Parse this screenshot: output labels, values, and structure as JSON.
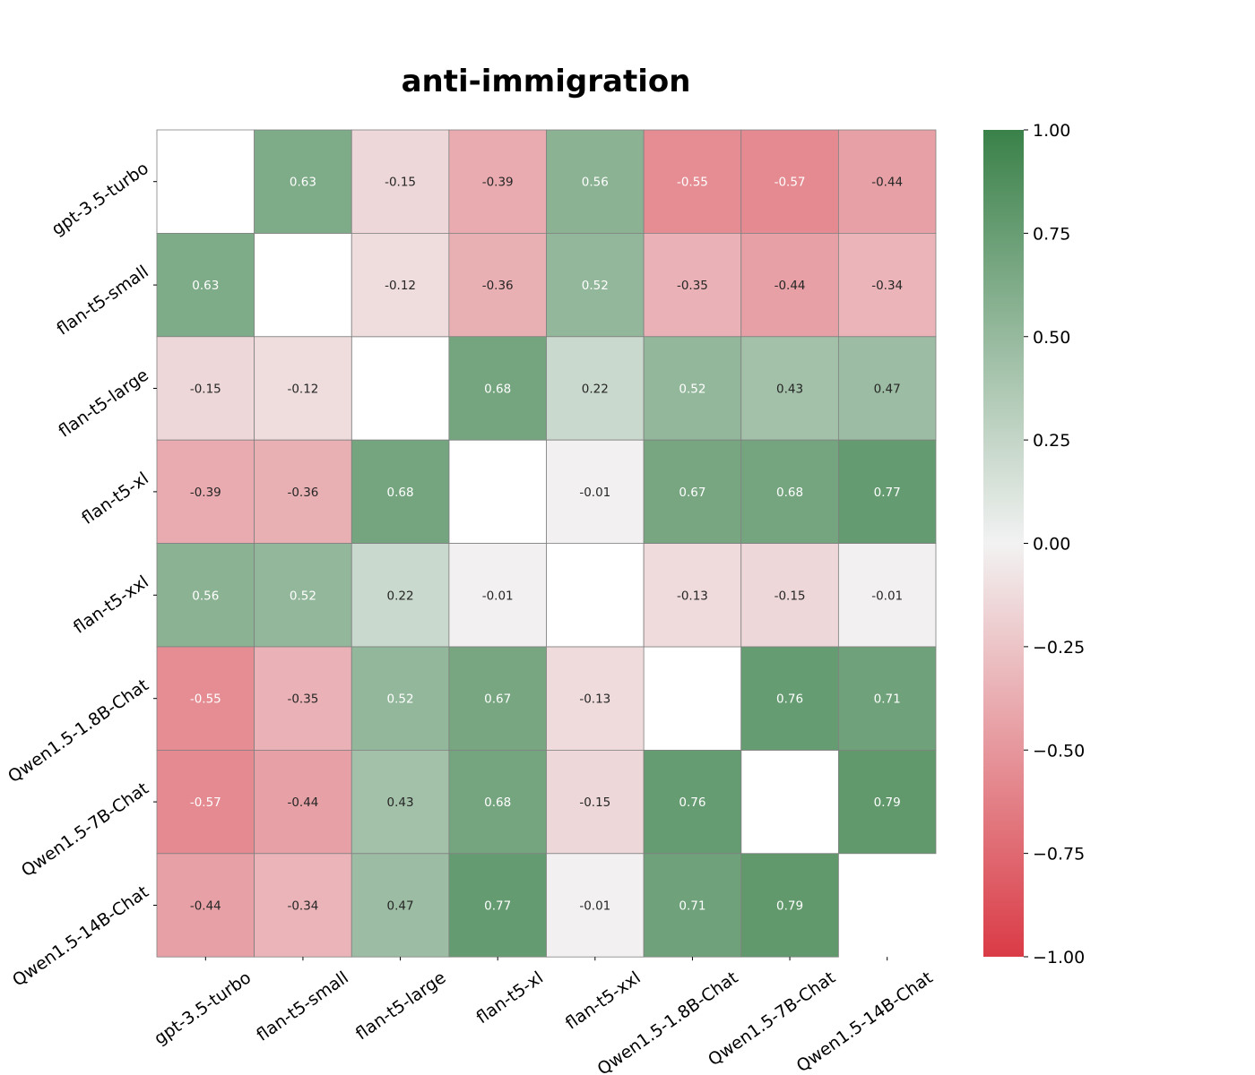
{
  "chart_data": {
    "type": "heatmap",
    "title": "anti-immigration",
    "x_categories": [
      "gpt-3.5-turbo",
      "flan-t5-small",
      "flan-t5-large",
      "flan-t5-xl",
      "flan-t5-xxl",
      "Qwen1.5-1.8B-Chat",
      "Qwen1.5-7B-Chat",
      "Qwen1.5-14B-Chat"
    ],
    "y_categories": [
      "gpt-3.5-turbo",
      "flan-t5-small",
      "flan-t5-large",
      "flan-t5-xl",
      "flan-t5-xxl",
      "Qwen1.5-1.8B-Chat",
      "Qwen1.5-7B-Chat",
      "Qwen1.5-14B-Chat"
    ],
    "values": [
      [
        null,
        0.63,
        -0.15,
        -0.39,
        0.56,
        -0.55,
        -0.57,
        -0.44
      ],
      [
        0.63,
        null,
        -0.12,
        -0.36,
        0.52,
        -0.35,
        -0.44,
        -0.34
      ],
      [
        -0.15,
        -0.12,
        null,
        0.68,
        0.22,
        0.52,
        0.43,
        0.47
      ],
      [
        -0.39,
        -0.36,
        0.68,
        null,
        -0.01,
        0.67,
        0.68,
        0.77
      ],
      [
        0.56,
        0.52,
        0.22,
        -0.01,
        null,
        -0.13,
        -0.15,
        -0.01
      ],
      [
        -0.55,
        -0.35,
        0.52,
        0.67,
        -0.13,
        null,
        0.76,
        0.71
      ],
      [
        -0.57,
        -0.44,
        0.43,
        0.68,
        -0.15,
        0.76,
        null,
        0.79
      ],
      [
        -0.44,
        -0.34,
        0.47,
        0.77,
        -0.01,
        0.71,
        0.79,
        null
      ]
    ],
    "cell_labels": [
      [
        "",
        "0.63",
        "-0.15",
        "-0.39",
        "0.56",
        "-0.55",
        "-0.57",
        "-0.44"
      ],
      [
        "0.63",
        "",
        "-0.12",
        "-0.36",
        "0.52",
        "-0.35",
        "-0.44",
        "-0.34"
      ],
      [
        "-0.15",
        "-0.12",
        "",
        "0.68",
        "0.22",
        "0.52",
        "0.43",
        "0.47"
      ],
      [
        "-0.39",
        "-0.36",
        "0.68",
        "",
        "-0.01",
        "0.67",
        "0.68",
        "0.77"
      ],
      [
        "0.56",
        "0.52",
        "0.22",
        "-0.01",
        "",
        "-0.13",
        "-0.15",
        "-0.01"
      ],
      [
        "-0.55",
        "-0.35",
        "0.52",
        "0.67",
        "-0.13",
        "",
        "0.76",
        "0.71"
      ],
      [
        "-0.57",
        "-0.44",
        "0.43",
        "0.68",
        "-0.15",
        "0.76",
        "",
        "0.79"
      ],
      [
        "-0.44",
        "-0.34",
        "0.47",
        "0.77",
        "-0.01",
        "0.71",
        "0.79",
        ""
      ]
    ],
    "colorbar": {
      "range": [
        -1.0,
        1.0
      ],
      "ticks": [
        1.0,
        0.75,
        0.5,
        0.25,
        0.0,
        -0.25,
        -0.5,
        -0.75,
        -1.0
      ],
      "tick_labels": [
        "1.00",
        "0.75",
        "0.50",
        "0.25",
        "0.00",
        "−0.25",
        "−0.50",
        "−0.75",
        "−1.00"
      ],
      "color_min": "#da3b46",
      "color_mid": "#f2f2f2",
      "color_max": "#3a8149"
    },
    "grid": true,
    "legend": "colorbar-right"
  }
}
